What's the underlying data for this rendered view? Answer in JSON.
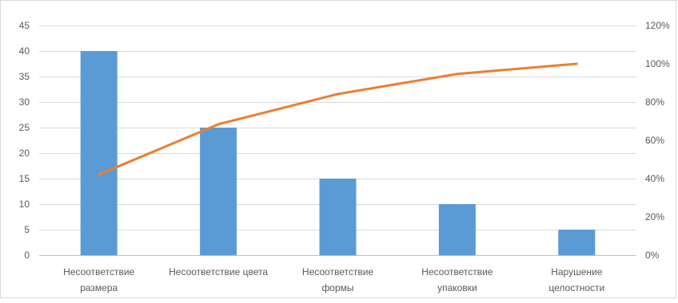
{
  "chart_data": {
    "type": "bar",
    "categories": [
      [
        "Несоответствие",
        "размера"
      ],
      [
        "Несоответствие цвета"
      ],
      [
        "Несоответствие",
        "формы"
      ],
      [
        "Несоответствие",
        "упаковки"
      ],
      [
        "Нарушение",
        "целостности"
      ]
    ],
    "series": [
      {
        "type": "bar",
        "values": [
          40,
          25,
          15,
          10,
          5
        ],
        "color": "#5B9BD5",
        "axis": "left"
      },
      {
        "type": "line",
        "values": [
          0.421,
          0.684,
          0.842,
          0.947,
          1.0
        ],
        "color": "#ED7D31",
        "axis": "right"
      }
    ],
    "y_left": {
      "min": 0,
      "max": 45,
      "step": 5,
      "ticks": [
        "0",
        "5",
        "10",
        "15",
        "20",
        "25",
        "30",
        "35",
        "40",
        "45"
      ]
    },
    "y_right": {
      "min": 0,
      "max": 1.2,
      "step": 0.2,
      "ticks": [
        "0%",
        "20%",
        "40%",
        "60%",
        "80%",
        "100%",
        "120%"
      ]
    },
    "grid": true,
    "title": "",
    "xlabel": "",
    "ylabel": ""
  }
}
